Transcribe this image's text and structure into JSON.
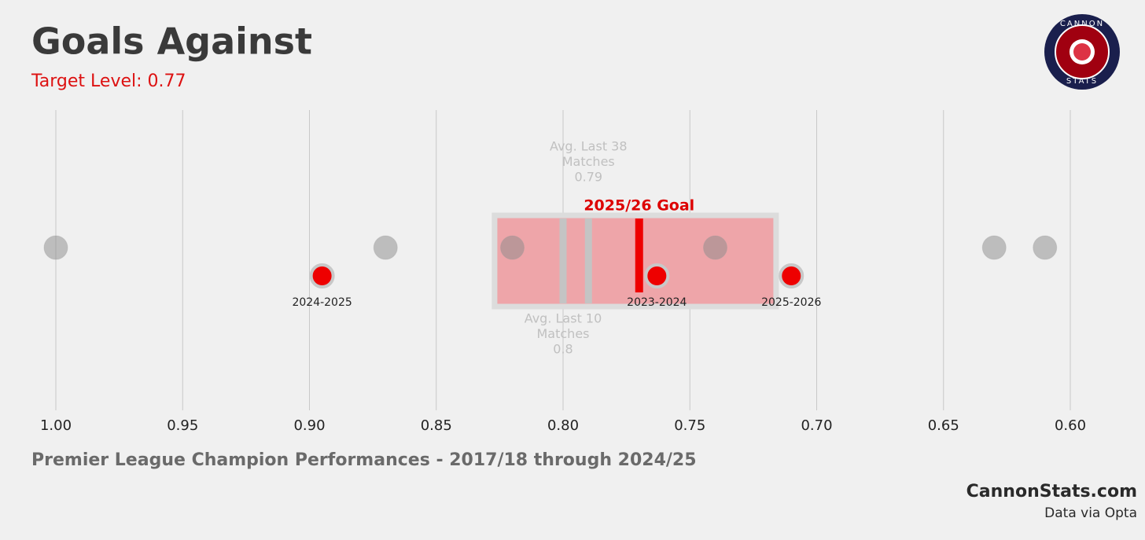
{
  "chart_data": {
    "type": "strip",
    "title": "Goals Against",
    "subtitle": "Target Level: 0.77",
    "x_label": "Premier League Champion Performances - 2017/18 through 2024/25",
    "brand": "CannonStats.com",
    "source": "Data via Opta",
    "logo": {
      "top": "CANNON",
      "bottom": "STATS"
    },
    "xlim": [
      1.0,
      0.6
    ],
    "xticks": [
      {
        "value": 1.0,
        "label": "1.00"
      },
      0.95,
      {
        "value": 0.9,
        "label": "0.90"
      },
      0.85,
      {
        "value": 0.8,
        "label": "0.80"
      },
      0.75,
      {
        "value": 0.7,
        "label": "0.70"
      },
      0.65,
      {
        "value": 0.6,
        "label": "0.60"
      }
    ],
    "grid": true,
    "band": [
      0.827,
      0.716
    ],
    "series": [
      {
        "color": "#8a8a8a",
        "values": [
          1.0,
          0.87,
          0.82,
          0.74,
          0.63,
          0.61
        ]
      },
      {
        "color": "#ee0000",
        "values": [
          0.895,
          0.763,
          0.71
        ],
        "labels": [
          "2024-2025",
          "2023-2024",
          "2025-2026"
        ]
      }
    ],
    "reference_lines": [
      {
        "label_lines": [
          "Avg. Last 38",
          "Matches"
        ],
        "value": 0.79,
        "position": "above"
      },
      {
        "label_lines": [
          "Avg. Last 10",
          "Matches"
        ],
        "value": 0.8,
        "position": "below"
      }
    ],
    "goal": {
      "label": "2025/26 Goal",
      "value": 0.77
    }
  }
}
